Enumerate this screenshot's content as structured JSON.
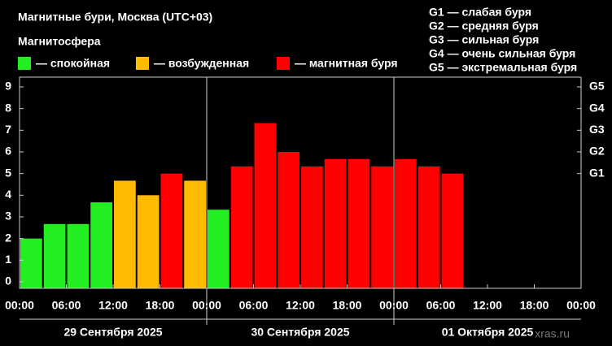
{
  "chart_data": {
    "type": "bar",
    "title": "Магнитные бури, Москва (UTC+03)",
    "subtitle": "Магнитосфера",
    "legend": [
      {
        "name": "— спокойная",
        "color": "#22ee22"
      },
      {
        "name": "— возбужденная",
        "color": "#ffbb00"
      },
      {
        "name": "— магнитная буря",
        "color": "#ff0000"
      }
    ],
    "storm_legend": [
      "G1 — слабая буря",
      "G2 — средняя буря",
      "G3 — сильная буря",
      "G4 — очень сильная буря",
      "G5 — экстремальная буря"
    ],
    "x": [
      0,
      3,
      6,
      9,
      12,
      15,
      18,
      21,
      24,
      27,
      30,
      33,
      36,
      39,
      42,
      45,
      48,
      51,
      54
    ],
    "series": [
      {
        "values": [
          2.0,
          2.67,
          2.67,
          3.67,
          4.67,
          4.0,
          5.0,
          4.67,
          3.33,
          5.33,
          7.33,
          6.0,
          5.33,
          5.67,
          5.67,
          5.33,
          5.67,
          5.33,
          5.0
        ],
        "colors": [
          "#22ee22",
          "#22ee22",
          "#22ee22",
          "#22ee22",
          "#ffbb00",
          "#ffbb00",
          "#ff0000",
          "#ffbb00",
          "#22ee22",
          "#ff0000",
          "#ff0000",
          "#ff0000",
          "#ff0000",
          "#ff0000",
          "#ff0000",
          "#ff0000",
          "#ff0000",
          "#ff0000",
          "#ff0000"
        ]
      }
    ],
    "xlim": [
      0,
      72
    ],
    "xticks": [
      {
        "value": 0,
        "label": "00:00"
      },
      {
        "value": 6,
        "label": "06:00"
      },
      {
        "value": 12,
        "label": "12:00"
      },
      {
        "value": 18,
        "label": "18:00"
      },
      {
        "value": 24,
        "label": "00:00"
      },
      {
        "value": 30,
        "label": "06:00"
      },
      {
        "value": 36,
        "label": "12:00"
      },
      {
        "value": 42,
        "label": "18:00"
      },
      {
        "value": 48,
        "label": "00:00"
      },
      {
        "value": 54,
        "label": "06:00"
      },
      {
        "value": 60,
        "label": "12:00"
      },
      {
        "value": 66,
        "label": "18:00"
      },
      {
        "value": 72,
        "label": "00:00"
      }
    ],
    "days": [
      {
        "value": 12,
        "label": "29 Сентября 2025"
      },
      {
        "value": 36,
        "label": "30 Сентября 2025"
      },
      {
        "value": 60,
        "label": "01 Октября 2025"
      }
    ],
    "day_separators": [
      24,
      48
    ],
    "ylim": [
      -0.3,
      9.45
    ],
    "yticks": [
      0,
      1,
      2,
      3,
      4,
      5,
      6,
      7,
      8,
      9
    ],
    "y2lim": [
      -0.3,
      9.45
    ],
    "y2ticks": [
      {
        "value": 5,
        "label": "G1"
      },
      {
        "value": 6,
        "label": "G2"
      },
      {
        "value": 7,
        "label": "G3"
      },
      {
        "value": 8,
        "label": "G4"
      },
      {
        "value": 9,
        "label": "G5"
      }
    ],
    "watermark": "xras.ru"
  }
}
